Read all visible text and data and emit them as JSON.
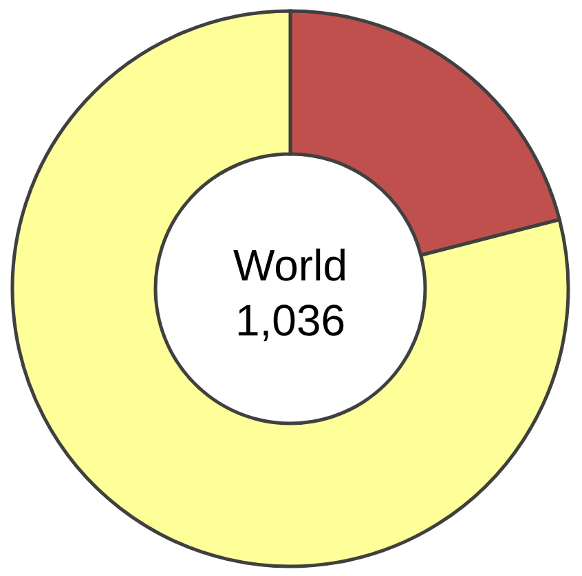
{
  "chart_data": {
    "type": "donut",
    "title": "World",
    "subtitle": "1,036",
    "categories": [
      null,
      null
    ],
    "values": [
      21,
      79
    ],
    "colors": [
      "#c0504d",
      "#ffff99"
    ],
    "legend": false
  }
}
